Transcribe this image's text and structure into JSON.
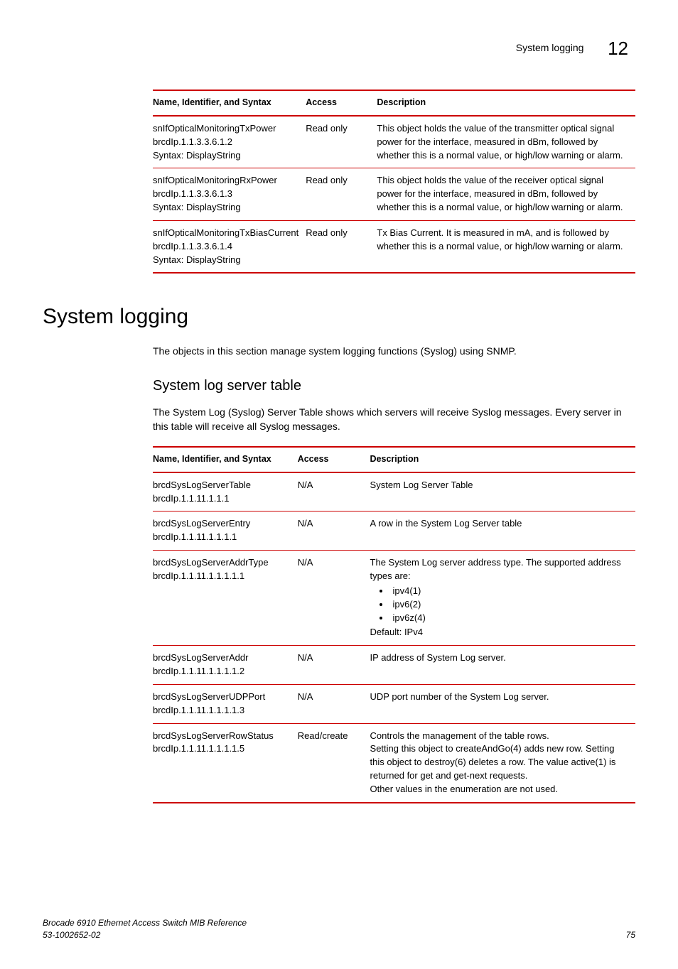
{
  "header": {
    "section_title": "System logging",
    "chapter_number": "12"
  },
  "table1": {
    "columns": [
      "Name, Identifier, and Syntax",
      "Access",
      "Description"
    ],
    "rows": [
      {
        "name_lines": [
          "snIfOpticalMonitoringTxPower",
          "brcdIp.1.1.3.3.6.1.2",
          "Syntax: DisplayString"
        ],
        "access": "Read only",
        "desc": "This object holds the value of the transmitter optical signal power for the interface, measured in dBm, followed by whether this is a normal value, or high/low warning or alarm."
      },
      {
        "name_lines": [
          "snIfOpticalMonitoringRxPower",
          "brcdIp.1.1.3.3.6.1.3",
          "Syntax: DisplayString"
        ],
        "access": "Read only",
        "desc": "This object holds the value of the receiver optical signal power for the interface, measured in dBm, followed by whether this is a normal value, or high/low warning or alarm."
      },
      {
        "name_lines": [
          "snIfOpticalMonitoringTxBiasCurrent",
          "brcdIp.1.1.3.3.6.1.4",
          "Syntax: DisplayString"
        ],
        "access": "Read only",
        "desc": "Tx Bias Current. It is measured in mA, and is followed by whether this is a normal value, or high/low warning or alarm."
      }
    ]
  },
  "section": {
    "heading": "System logging",
    "intro": "The objects in this section manage system logging functions (Syslog) using SNMP.",
    "subheading": "System log server table",
    "subintro": "The System Log (Syslog) Server Table shows which servers will receive Syslog messages. Every server in this table will receive all Syslog messages."
  },
  "table2": {
    "columns": [
      "Name, Identifier, and Syntax",
      "Access",
      "Description"
    ],
    "rows": [
      {
        "name_lines": [
          "brcdSysLogServerTable",
          "brcdIp.1.1.11.1.1.1"
        ],
        "access": "N/A",
        "desc_type": "plain",
        "desc": "System Log Server Table"
      },
      {
        "name_lines": [
          "brcdSysLogServerEntry",
          "brcdIp.1.1.11.1.1.1.1"
        ],
        "access": "N/A",
        "desc_type": "plain",
        "desc": "A row in the System Log Server table"
      },
      {
        "name_lines": [
          "brcdSysLogServerAddrType",
          "brcdIp.1.1.11.1.1.1.1.1"
        ],
        "access": "N/A",
        "desc_type": "list",
        "desc_pre": "The System Log server address type. The supported address types are:",
        "desc_items": [
          "ipv4(1)",
          "ipv6(2)",
          "ipv6z(4)"
        ],
        "desc_post": "Default: IPv4"
      },
      {
        "name_lines": [
          "brcdSysLogServerAddr",
          "brcdIp.1.1.11.1.1.1.1.2"
        ],
        "access": "N/A",
        "desc_type": "plain",
        "desc": "IP address of System Log server."
      },
      {
        "name_lines": [
          "brcdSysLogServerUDPPort",
          "brcdIp.1.1.11.1.1.1.1.3"
        ],
        "access": "N/A",
        "desc_type": "plain",
        "desc": "UDP port number of the System Log server."
      },
      {
        "name_lines": [
          "brcdSysLogServerRowStatus",
          "brcdIp.1.1.11.1.1.1.1.5"
        ],
        "access": "Read/create",
        "desc_type": "multi",
        "desc_lines": [
          "Controls the management of the table rows.",
          "Setting this object to createAndGo(4) adds new row. Setting this object to destroy(6) deletes a row. The value active(1) is returned for get and get-next requests.",
          "Other values in the enumeration are not used."
        ]
      }
    ]
  },
  "footer": {
    "left_line1": "Brocade 6910 Ethernet Access Switch MIB Reference",
    "left_line2": "53-1002652-02",
    "page": "75"
  }
}
